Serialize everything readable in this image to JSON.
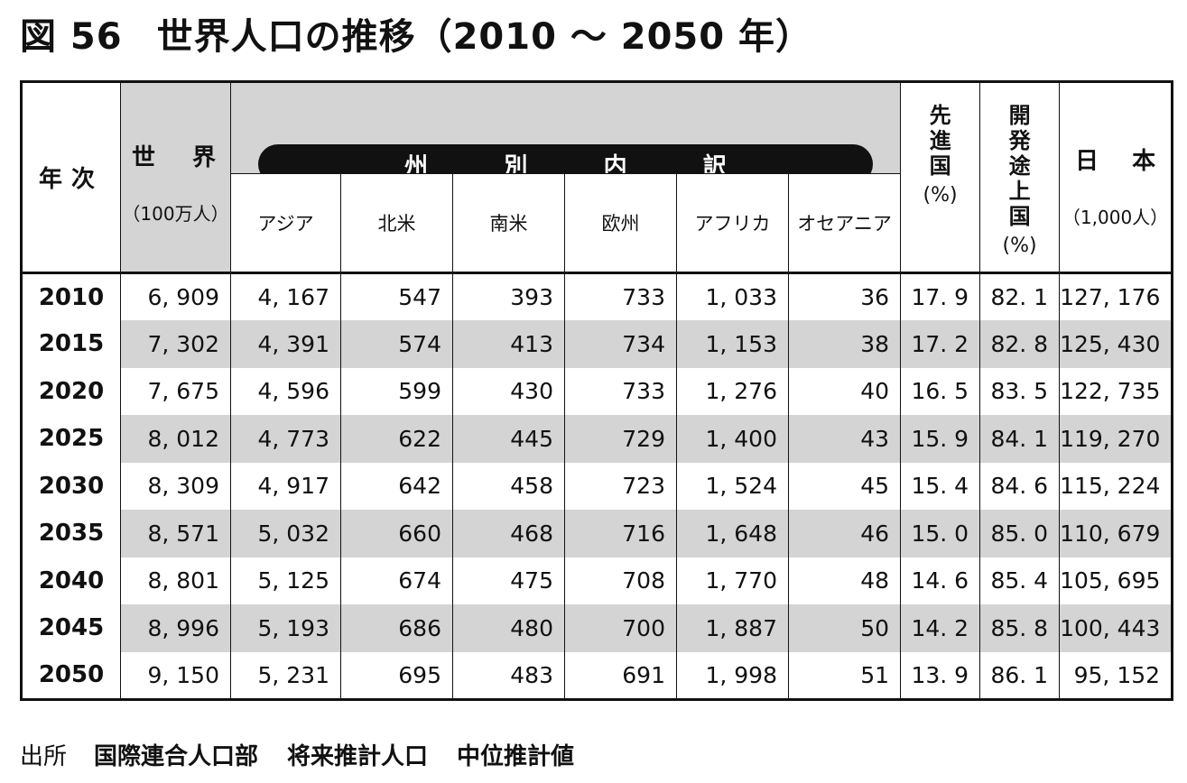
{
  "title": {
    "figure_number": "図 56",
    "text": "世界人口の推移（2010 ～ 2050 年）"
  },
  "headers": {
    "year": "年次",
    "world": "世 界",
    "world_unit": "（100万人）",
    "breakdown": [
      "州",
      "別",
      "内",
      "訳"
    ],
    "regions": [
      "アジア",
      "北米",
      "南米",
      "欧州",
      "アフリカ",
      "オセアニア"
    ],
    "developed": "先進国",
    "developing": "開発途上国",
    "percent": "(%)",
    "japan": "日 本",
    "japan_unit": "（1,000人）"
  },
  "rows": [
    {
      "year": "2010",
      "world": "6, 909",
      "asia": "4, 167",
      "north_america": "547",
      "south_america": "393",
      "europe": "733",
      "africa": "1, 033",
      "oceania": "36",
      "developed": "17. 9",
      "developing": "82. 1",
      "japan": "127, 176"
    },
    {
      "year": "2015",
      "world": "7, 302",
      "asia": "4, 391",
      "north_america": "574",
      "south_america": "413",
      "europe": "734",
      "africa": "1, 153",
      "oceania": "38",
      "developed": "17. 2",
      "developing": "82. 8",
      "japan": "125, 430"
    },
    {
      "year": "2020",
      "world": "7, 675",
      "asia": "4, 596",
      "north_america": "599",
      "south_america": "430",
      "europe": "733",
      "africa": "1, 276",
      "oceania": "40",
      "developed": "16. 5",
      "developing": "83. 5",
      "japan": "122, 735"
    },
    {
      "year": "2025",
      "world": "8, 012",
      "asia": "4, 773",
      "north_america": "622",
      "south_america": "445",
      "europe": "729",
      "africa": "1, 400",
      "oceania": "43",
      "developed": "15. 9",
      "developing": "84. 1",
      "japan": "119, 270"
    },
    {
      "year": "2030",
      "world": "8, 309",
      "asia": "4, 917",
      "north_america": "642",
      "south_america": "458",
      "europe": "723",
      "africa": "1, 524",
      "oceania": "45",
      "developed": "15. 4",
      "developing": "84. 6",
      "japan": "115, 224"
    },
    {
      "year": "2035",
      "world": "8, 571",
      "asia": "5, 032",
      "north_america": "660",
      "south_america": "468",
      "europe": "716",
      "africa": "1, 648",
      "oceania": "46",
      "developed": "15. 0",
      "developing": "85. 0",
      "japan": "110, 679"
    },
    {
      "year": "2040",
      "world": "8, 801",
      "asia": "5, 125",
      "north_america": "674",
      "south_america": "475",
      "europe": "708",
      "africa": "1, 770",
      "oceania": "48",
      "developed": "14. 6",
      "developing": "85. 4",
      "japan": "105, 695"
    },
    {
      "year": "2045",
      "world": "8, 996",
      "asia": "5, 193",
      "north_america": "686",
      "south_america": "480",
      "europe": "700",
      "africa": "1, 887",
      "oceania": "50",
      "developed": "14. 2",
      "developing": "85. 8",
      "japan": "100, 443"
    },
    {
      "year": "2050",
      "world": "9, 150",
      "asia": "5, 231",
      "north_america": "695",
      "south_america": "483",
      "europe": "691",
      "africa": "1, 998",
      "oceania": "51",
      "developed": "13. 9",
      "developing": "86. 1",
      "japan": "95, 152"
    }
  ],
  "source": {
    "label": "出所",
    "organization": "国際連合人口部",
    "kind": "将来推計人口",
    "variant": "中位推計値"
  }
}
